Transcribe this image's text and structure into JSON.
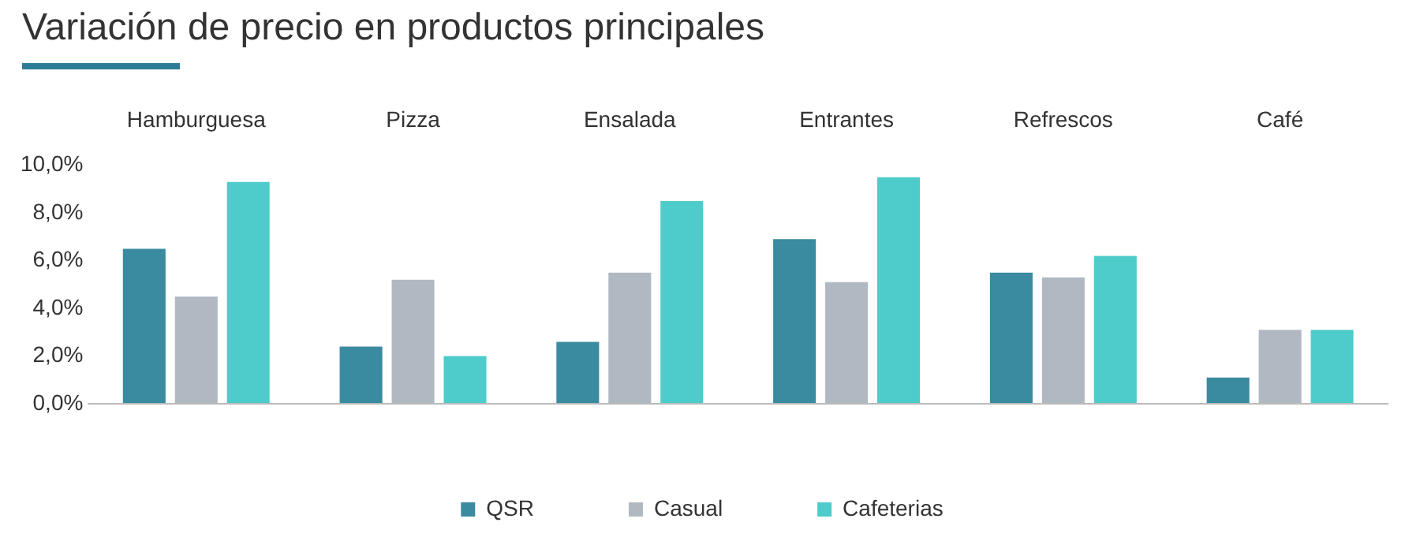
{
  "chart_data": {
    "type": "bar",
    "title": "Variación de precio en productos principales",
    "categories": [
      "Hamburguesa",
      "Pizza",
      "Ensalada",
      "Entrantes",
      "Refrescos",
      "Café"
    ],
    "series": [
      {
        "name": "QSR",
        "color": "#3a8aa0",
        "values": [
          6.5,
          2.4,
          2.6,
          6.9,
          5.5,
          1.1
        ]
      },
      {
        "name": "Casual",
        "color": "#b0b8c1",
        "values": [
          4.5,
          5.2,
          5.5,
          5.1,
          5.3,
          3.1
        ]
      },
      {
        "name": "Cafeterias",
        "color": "#4ecbcb",
        "values": [
          9.3,
          2.0,
          8.5,
          9.5,
          6.2,
          3.1
        ]
      }
    ],
    "ylim": [
      0,
      10
    ],
    "yticks": [
      {
        "value": 0,
        "label": "0,0%"
      },
      {
        "value": 2,
        "label": "2,0%"
      },
      {
        "value": 4,
        "label": "4,0%"
      },
      {
        "value": 6,
        "label": "6,0%"
      },
      {
        "value": 8,
        "label": "8,0%"
      },
      {
        "value": 10,
        "label": "10,0%"
      }
    ],
    "legend": "bottom"
  }
}
